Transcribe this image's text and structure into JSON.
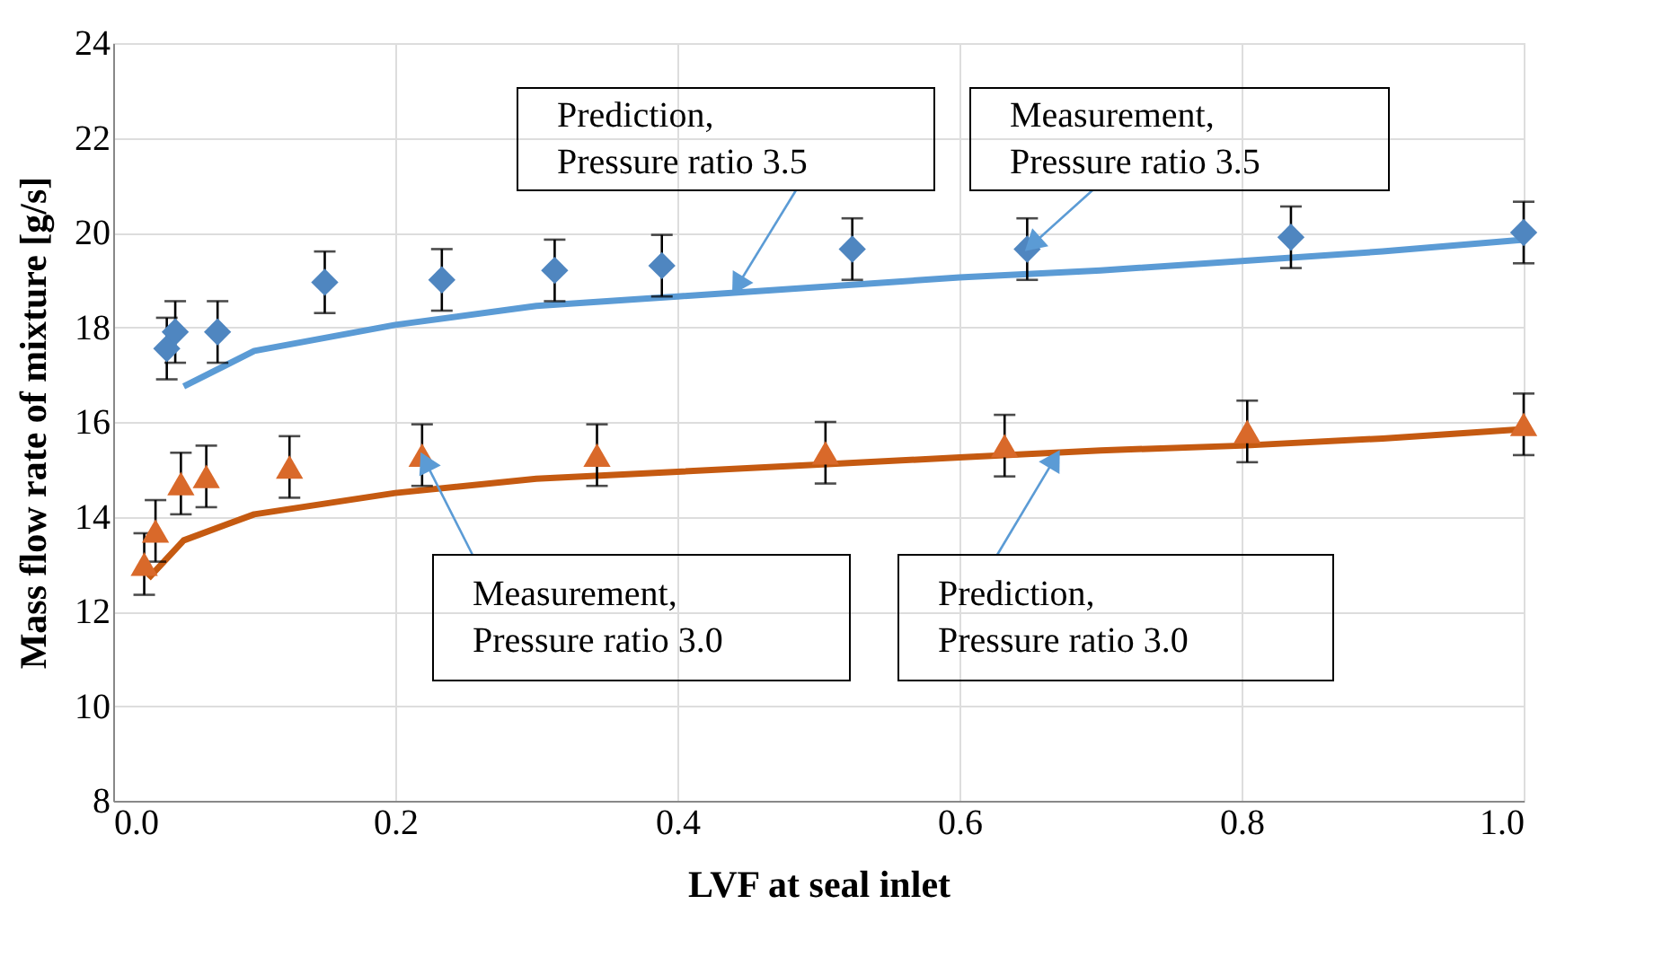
{
  "chart_data": {
    "type": "scatter",
    "xlabel": "LVF at seal inlet",
    "ylabel": "Mass flow rate of mixture [g/s]",
    "xlim": [
      0,
      1
    ],
    "xticks": [
      {
        "value": 0,
        "label": "0.0"
      },
      0.2,
      0.4,
      0.6,
      0.8,
      {
        "value": 1,
        "label": "1.0"
      }
    ],
    "ylim": [
      8,
      24
    ],
    "yticks": [
      8,
      10,
      12,
      14,
      16,
      18,
      20,
      22,
      24
    ],
    "grid": true,
    "series": [
      {
        "type": "scatter",
        "marker": "diamond",
        "color": "#4f86c0",
        "x": [
          0.038,
          0.044,
          0.074,
          0.15,
          0.233,
          0.313,
          0.389,
          0.524,
          0.648,
          0.835,
          1.0
        ],
        "values": [
          17.55,
          17.9,
          17.9,
          18.95,
          19.0,
          19.2,
          19.3,
          19.65,
          19.65,
          19.9,
          20.0
        ],
        "errors": [
          0.65,
          0.65,
          0.65,
          0.65,
          0.65,
          0.65,
          0.65,
          0.65,
          0.65,
          0.65,
          0.65
        ]
      },
      {
        "type": "line",
        "marker": "none",
        "color": "#5b9bd5",
        "x": [
          0.05,
          0.1,
          0.2,
          0.3,
          0.4,
          0.5,
          0.6,
          0.7,
          0.8,
          0.9,
          1.0
        ],
        "values": [
          16.75,
          17.5,
          18.05,
          18.45,
          18.65,
          18.85,
          19.05,
          19.2,
          19.4,
          19.6,
          19.85
        ]
      },
      {
        "type": "scatter",
        "marker": "triangle",
        "color": "#d9692a",
        "x": [
          0.022,
          0.03,
          0.048,
          0.066,
          0.125,
          0.219,
          0.343,
          0.505,
          0.632,
          0.804,
          1.0
        ],
        "values": [
          13.0,
          13.7,
          14.7,
          14.85,
          15.05,
          15.3,
          15.3,
          15.35,
          15.5,
          15.8,
          15.95
        ],
        "errors": [
          0.65,
          0.65,
          0.65,
          0.65,
          0.65,
          0.65,
          0.65,
          0.65,
          0.65,
          0.65,
          0.65
        ]
      },
      {
        "type": "line",
        "marker": "none",
        "color": "#c55a11",
        "x": [
          0.025,
          0.05,
          0.1,
          0.2,
          0.3,
          0.4,
          0.5,
          0.6,
          0.7,
          0.8,
          0.9,
          1.0
        ],
        "values": [
          12.7,
          13.5,
          14.05,
          14.5,
          14.8,
          14.95,
          15.1,
          15.25,
          15.4,
          15.5,
          15.65,
          15.85
        ]
      }
    ],
    "annotations": [
      {
        "text": "Prediction,\nPressure ratio 3.5",
        "x": 0.44,
        "y": 18.75
      },
      {
        "text": "Measurement,\nPressure ratio 3.5",
        "x": 0.648,
        "y": 19.65
      },
      {
        "text": "Measurement,\nPressure ratio 3.0",
        "x": 0.219,
        "y": 15.3
      },
      {
        "text": "Prediction,\nPressure ratio 3.0",
        "x": 0.67,
        "y": 15.35
      }
    ]
  }
}
